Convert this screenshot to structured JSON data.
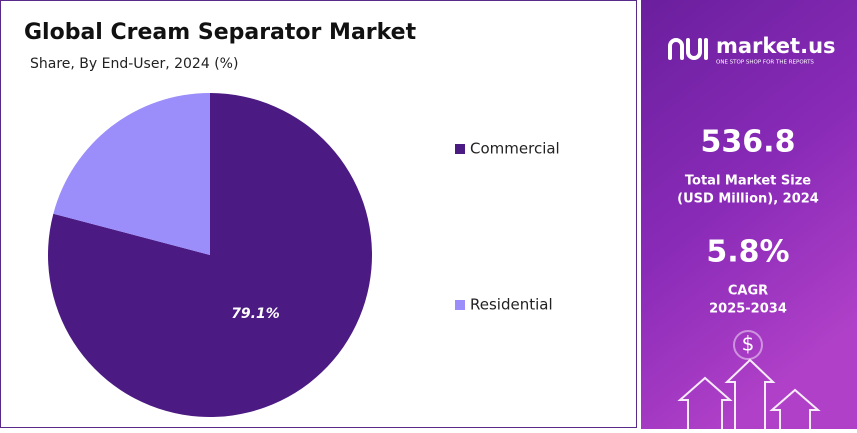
{
  "chart_data": {
    "type": "pie",
    "title": "Global Cream Separator Market",
    "subtitle": "Share, By End-User, 2024 (%)",
    "categories": [
      "Commercial",
      "Residential"
    ],
    "values": [
      79.1,
      20.9
    ],
    "value_labels": [
      "79.1%",
      null
    ],
    "colors": [
      "#4b1a82",
      "#9b8dfa"
    ],
    "legend_position": "right"
  },
  "panel": {
    "brand": "market.us",
    "tagline": "ONE STOP SHOP FOR THE REPORTS",
    "market_size": "536.8",
    "market_size_label": [
      "Total Market Size",
      "(USD Million), 2024"
    ],
    "cagr": "5.8%",
    "cagr_label": [
      "CAGR",
      "2025-2034"
    ],
    "icon": "$"
  }
}
